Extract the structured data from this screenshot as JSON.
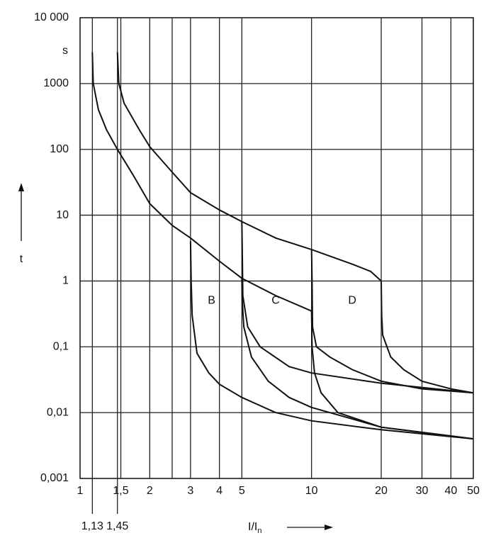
{
  "chart_data": {
    "type": "line",
    "xscale": "log",
    "yscale": "log",
    "grid": true,
    "y_unit": "s",
    "y_label": "t",
    "x_label": "I/I",
    "x_label_sub": "n",
    "xlim": [
      1,
      50
    ],
    "ylim": [
      0.001,
      10000
    ],
    "xticks": [
      1,
      {
        "value": 1.5,
        "label": "1,5"
      },
      2,
      3,
      4,
      5,
      10,
      20,
      30,
      40,
      50
    ],
    "xticks_minor": [
      2.5
    ],
    "xticks_below": [
      {
        "value": 1.13,
        "label": "1,13"
      },
      {
        "value": 1.45,
        "label": "1,45"
      }
    ],
    "yticks": [
      {
        "value": 10000,
        "label": "10 000"
      },
      1000,
      100,
      10,
      1,
      {
        "value": 0.1,
        "label": "0,1"
      },
      {
        "value": 0.01,
        "label": "0,01"
      },
      {
        "value": 0.001,
        "label": "0,001"
      }
    ],
    "annotations": [
      {
        "text": "B",
        "x": 3.7,
        "y": 0.5
      },
      {
        "text": "C",
        "x": 7,
        "y": 0.5
      },
      {
        "text": "D",
        "x": 15,
        "y": 0.5
      }
    ],
    "color": "#111111",
    "curves": [
      {
        "x": [
          1.13,
          1.14,
          1.2,
          1.3,
          1.45,
          1.7,
          2,
          2.5,
          3,
          4,
          5,
          7,
          10
        ],
        "y": [
          3000,
          1000,
          400,
          200,
          100,
          40,
          15,
          7,
          4.5,
          2,
          1.1,
          0.6,
          0.35
        ]
      },
      {
        "x": [
          1.45,
          1.47,
          1.55,
          1.8,
          2,
          2.5,
          3,
          4,
          5,
          7,
          10,
          15,
          18,
          20
        ],
        "y": [
          3000,
          1000,
          500,
          200,
          110,
          45,
          22,
          12,
          8,
          4.5,
          3,
          1.8,
          1.4,
          1
        ]
      },
      {
        "x": [
          3,
          3.02,
          3.05,
          3.2,
          3.6,
          4,
          5,
          7,
          10,
          20,
          50
        ],
        "y": [
          4,
          1,
          0.3,
          0.08,
          0.04,
          0.027,
          0.017,
          0.01,
          0.0075,
          0.0055,
          0.004
        ]
      },
      {
        "x": [
          5,
          5.02,
          5.1,
          5.5,
          6.5,
          8,
          10,
          15,
          20,
          50
        ],
        "y": [
          1.1,
          0.5,
          0.2,
          0.07,
          0.03,
          0.017,
          0.012,
          0.008,
          0.006,
          0.004
        ]
      },
      {
        "x": [
          5,
          5.02,
          5.05,
          5.3,
          6,
          8,
          10,
          20,
          50
        ],
        "y": [
          8,
          3,
          0.6,
          0.2,
          0.1,
          0.05,
          0.04,
          0.028,
          0.02
        ]
      },
      {
        "x": [
          10,
          10.05,
          10.3,
          11,
          13,
          20,
          50
        ],
        "y": [
          0.35,
          0.1,
          0.04,
          0.02,
          0.01,
          0.006,
          0.004
        ]
      },
      {
        "x": [
          10,
          10.05,
          10.1,
          10.5,
          12,
          15,
          20,
          30,
          50
        ],
        "y": [
          3,
          1,
          0.2,
          0.1,
          0.07,
          0.045,
          0.03,
          0.023,
          0.02
        ]
      },
      {
        "x": [
          20,
          20.1,
          20.3,
          22,
          25,
          30,
          40,
          50
        ],
        "y": [
          1,
          0.3,
          0.15,
          0.07,
          0.045,
          0.03,
          0.023,
          0.02
        ]
      }
    ]
  }
}
